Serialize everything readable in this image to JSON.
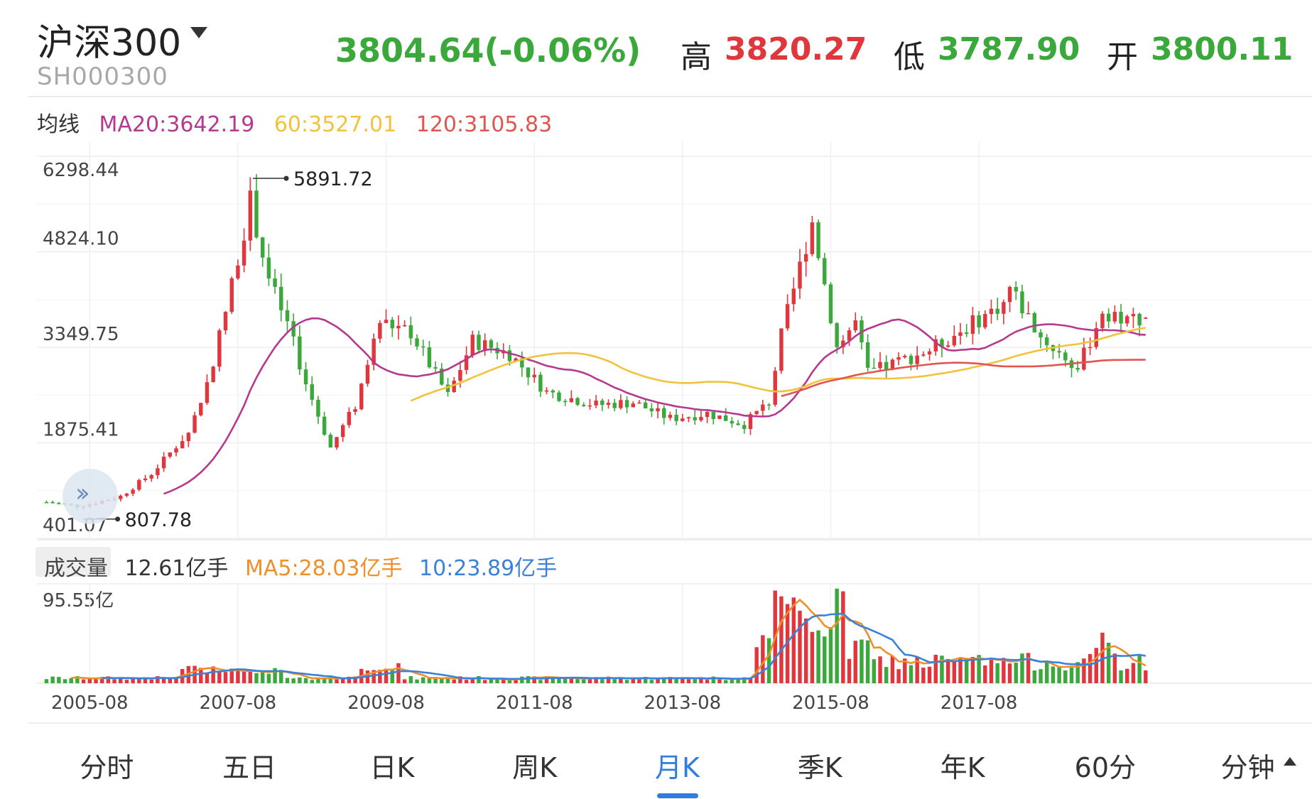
{
  "header": {
    "name": "沪深300",
    "code": "SH000300",
    "price_text": "3804.64(-0.06%)",
    "high_label": "高",
    "high_value": "3820.27",
    "low_label": "低",
    "low_value": "3787.90",
    "open_label": "开",
    "open_value": "3800.11"
  },
  "ma_legend": {
    "label": "均线",
    "ma20": "MA20:3642.19",
    "ma60": "60:3527.01",
    "ma120": "120:3105.83"
  },
  "volume_legend": {
    "label": "成交量",
    "current": "12.61亿手",
    "ma5": "MA5:28.03亿手",
    "ma10": "10:23.89亿手"
  },
  "colors": {
    "up": "#e0363d",
    "down": "#3aa83a",
    "ma20": "#b5398f",
    "ma60": "#f1c23a",
    "ma120": "#e0564e",
    "vol_ma5": "#ef8f2a",
    "vol_ma10": "#3a82d8",
    "active_tab": "#2f7de1"
  },
  "chart_data": {
    "type": "candlestick",
    "y_ticks": [
      "6298.44",
      "4824.10",
      "3349.75",
      "1875.41",
      "401.07"
    ],
    "ylim": [
      401.07,
      6298.44
    ],
    "x_ticks": [
      "2005-08",
      "2007-08",
      "2009-08",
      "2011-08",
      "2013-08",
      "2015-08",
      "2017-08"
    ],
    "max_annotation": "5891.72",
    "min_annotation": "807.78",
    "volume_max_label": "95.55亿",
    "volume_ylim": [
      0,
      95.55
    ],
    "close_series": [
      {
        "date": "2005-01",
        "value": 960
      },
      {
        "date": "2005-06",
        "value": 900
      },
      {
        "date": "2005-08",
        "value": 930
      },
      {
        "date": "2006-01",
        "value": 1050
      },
      {
        "date": "2006-06",
        "value": 1400
      },
      {
        "date": "2006-12",
        "value": 2040
      },
      {
        "date": "2007-03",
        "value": 2780
      },
      {
        "date": "2007-06",
        "value": 3900
      },
      {
        "date": "2007-10",
        "value": 5600
      },
      {
        "date": "2008-01",
        "value": 4400
      },
      {
        "date": "2008-04",
        "value": 3700
      },
      {
        "date": "2008-07",
        "value": 2800
      },
      {
        "date": "2008-11",
        "value": 1800
      },
      {
        "date": "2009-03",
        "value": 2450
      },
      {
        "date": "2009-07",
        "value": 3750
      },
      {
        "date": "2009-12",
        "value": 3580
      },
      {
        "date": "2010-06",
        "value": 2600
      },
      {
        "date": "2010-10",
        "value": 3450
      },
      {
        "date": "2011-04",
        "value": 3250
      },
      {
        "date": "2011-10",
        "value": 2660
      },
      {
        "date": "2012-06",
        "value": 2460
      },
      {
        "date": "2012-12",
        "value": 2500
      },
      {
        "date": "2013-06",
        "value": 2250
      },
      {
        "date": "2013-12",
        "value": 2330
      },
      {
        "date": "2014-06",
        "value": 2160
      },
      {
        "date": "2014-10",
        "value": 2510
      },
      {
        "date": "2014-12",
        "value": 3530
      },
      {
        "date": "2015-05",
        "value": 5300
      },
      {
        "date": "2015-09",
        "value": 3350
      },
      {
        "date": "2015-12",
        "value": 3730
      },
      {
        "date": "2016-02",
        "value": 2950
      },
      {
        "date": "2016-12",
        "value": 3310
      },
      {
        "date": "2017-06",
        "value": 3660
      },
      {
        "date": "2017-12",
        "value": 4030
      },
      {
        "date": "2018-01",
        "value": 4270
      },
      {
        "date": "2018-06",
        "value": 3510
      },
      {
        "date": "2018-12",
        "value": 3010
      },
      {
        "date": "2019-04",
        "value": 3910
      },
      {
        "date": "2019-08",
        "value": 3800
      },
      {
        "date": "2019-11",
        "value": 3805
      }
    ]
  },
  "tabs": [
    {
      "label": "分时",
      "active": false
    },
    {
      "label": "五日",
      "active": false
    },
    {
      "label": "日K",
      "active": false
    },
    {
      "label": "周K",
      "active": false
    },
    {
      "label": "月K",
      "active": true
    },
    {
      "label": "季K",
      "active": false
    },
    {
      "label": "年K",
      "active": false
    },
    {
      "label": "60分",
      "active": false
    },
    {
      "label": "分钟",
      "active": false
    }
  ],
  "tab_last_icon": "caret-up-icon",
  "scroll_icon": "double-chevron-right-icon"
}
